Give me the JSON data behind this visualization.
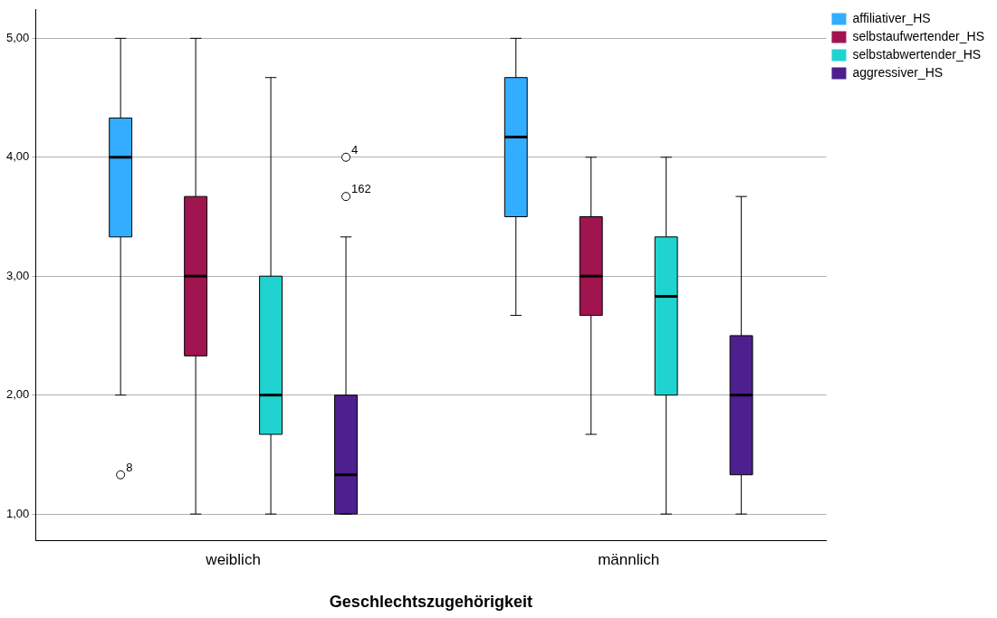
{
  "chart_data": {
    "type": "box",
    "xlabel": "Geschlechtszugehörigkeit",
    "categories": [
      "weiblich",
      "männlich"
    ],
    "ylim": [
      0.78,
      5.24
    ],
    "yticks": [
      {
        "value": 1,
        "label": "1,00"
      },
      {
        "value": 2,
        "label": "2,00"
      },
      {
        "value": 3,
        "label": "3,00"
      },
      {
        "value": 4,
        "label": "4,00"
      },
      {
        "value": 5,
        "label": "5,00"
      }
    ],
    "grid": "y",
    "legend": "top right",
    "series": [
      {
        "name": "affiliativer_HS",
        "color": "#33adff",
        "boxes": [
          {
            "low": 2,
            "q1": 3.33,
            "median": 4,
            "q3": 4.33,
            "high": 5,
            "outliers": [
              1.33
            ]
          },
          {
            "low": 2.67,
            "q1": 3.5,
            "median": 4.17,
            "q3": 4.67,
            "high": 5
          }
        ]
      },
      {
        "name": "selbstaufwertender_HS",
        "color": "#a0144f",
        "boxes": [
          {
            "low": 1,
            "q1": 2.33,
            "median": 3,
            "q3": 3.67,
            "high": 5
          },
          {
            "low": 1.67,
            "q1": 2.67,
            "median": 3,
            "q3": 3.5,
            "high": 4
          }
        ]
      },
      {
        "name": "selbstabwertender_HS",
        "color": "#1fd4d0",
        "boxes": [
          {
            "low": 1,
            "q1": 1.67,
            "median": 2,
            "q3": 3,
            "high": 4.67
          },
          {
            "low": 1,
            "q1": 2,
            "median": 2.83,
            "q3": 3.33,
            "high": 4
          }
        ]
      },
      {
        "name": "aggressiver_HS",
        "color": "#4e1f8f",
        "boxes": [
          {
            "low": 1,
            "q1": 1,
            "median": 1.33,
            "q3": 2,
            "high": 3.33,
            "outliers": [
              3.67,
              4
            ]
          },
          {
            "low": 1,
            "q1": 1.33,
            "median": 2,
            "q3": 2.5,
            "high": 3.67
          }
        ]
      }
    ],
    "annotations": [
      "8",
      "162",
      "4"
    ]
  }
}
